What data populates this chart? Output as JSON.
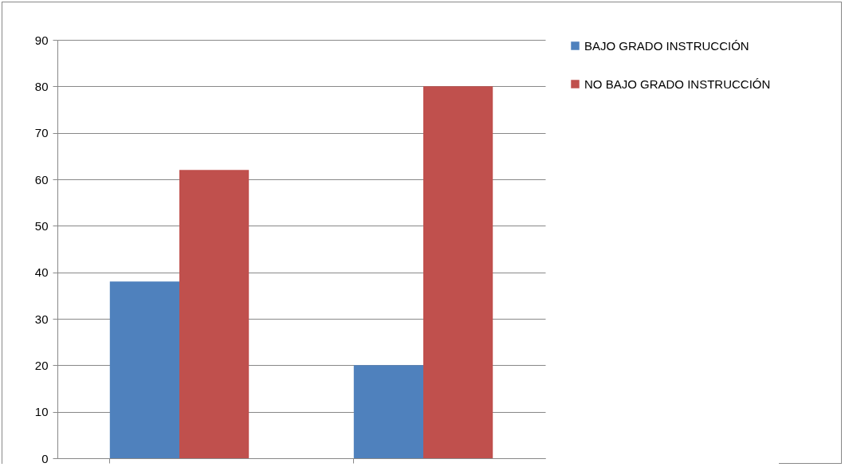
{
  "chart_data": {
    "type": "bar",
    "categories": [
      null,
      null
    ],
    "series": [
      {
        "name": "BAJO GRADO INSTRUCCIÓN",
        "color": "#4f81bd",
        "values": [
          38,
          20
        ]
      },
      {
        "name": "NO BAJO GRADO INSTRUCCIÓN",
        "color": "#c0504d",
        "values": [
          62,
          80
        ]
      }
    ],
    "ylim": [
      0,
      90
    ],
    "yticks": [
      0,
      10,
      20,
      30,
      40,
      50,
      60,
      70,
      80,
      90
    ],
    "grid": "y",
    "legend": "right"
  }
}
